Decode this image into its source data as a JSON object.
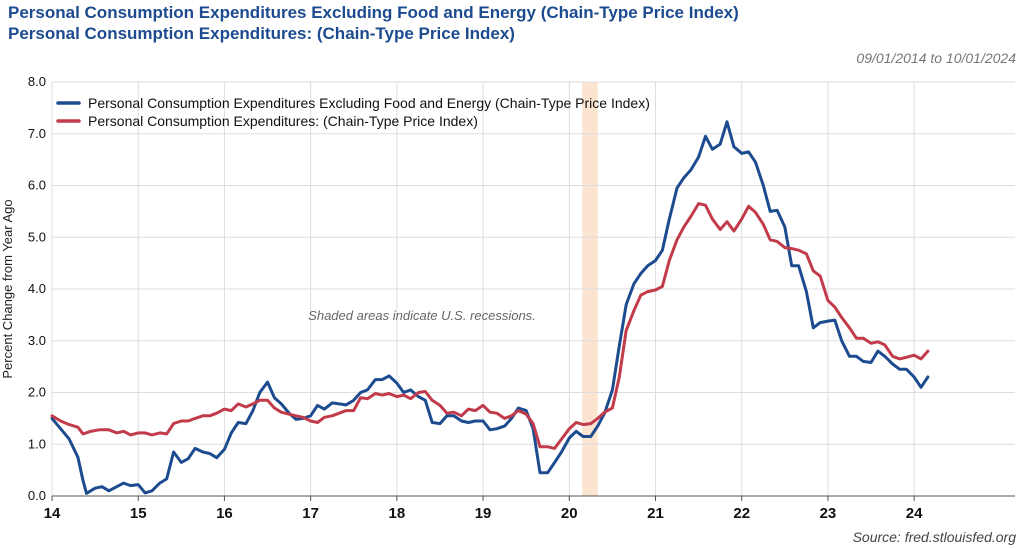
{
  "header": {
    "title_line1": "Personal Consumption Expenditures Excluding Food and Energy (Chain-Type Price Index)",
    "title_line2": "Personal Consumption Expenditures:  (Chain-Type Price Index)",
    "date_range": "09/01/2014 to 10/01/2024"
  },
  "footer": {
    "source": "Source: fred.stlouisfed.org"
  },
  "chart_data": {
    "type": "line",
    "ylabel": "Percent Change from Year Ago",
    "ylim": [
      0,
      8
    ],
    "yticks": [
      "0.0",
      "1.0",
      "2.0",
      "3.0",
      "4.0",
      "5.0",
      "6.0",
      "7.0",
      "8.0"
    ],
    "xlim": [
      2014.0,
      2025.17
    ],
    "xticks": [
      {
        "value": 2014.0,
        "label": "14"
      },
      {
        "value": 2015.0,
        "label": "15"
      },
      {
        "value": 2016.0,
        "label": "16"
      },
      {
        "value": 2017.0,
        "label": "17"
      },
      {
        "value": 2018.0,
        "label": "18"
      },
      {
        "value": 2019.0,
        "label": "19"
      },
      {
        "value": 2020.0,
        "label": "20"
      },
      {
        "value": 2021.0,
        "label": "21"
      },
      {
        "value": 2022.0,
        "label": "22"
      },
      {
        "value": 2023.0,
        "label": "23"
      },
      {
        "value": 2024.0,
        "label": "24"
      }
    ],
    "grid": true,
    "legend_position": "top-left",
    "recession": {
      "start": 2020.15,
      "end": 2020.33,
      "color": "#fbe5d0"
    },
    "annotation": "Shaded areas indicate U.S. recessions.",
    "series": [
      {
        "name": "Personal Consumption Expenditures Excluding Food and Energy (Chain-Type Price Index)",
        "color": "#1d4b8f",
        "points": [
          [
            2014.0,
            1.5
          ],
          [
            2014.1,
            1.3
          ],
          [
            2014.2,
            1.1
          ],
          [
            2014.3,
            0.75
          ],
          [
            2014.36,
            0.3
          ],
          [
            2014.4,
            0.05
          ],
          [
            2014.5,
            0.15
          ],
          [
            2014.58,
            0.18
          ],
          [
            2014.66,
            0.1
          ],
          [
            2014.75,
            0.18
          ],
          [
            2014.83,
            0.25
          ],
          [
            2014.91,
            0.2
          ],
          [
            2015.0,
            0.22
          ],
          [
            2015.08,
            0.06
          ],
          [
            2015.16,
            0.1
          ],
          [
            2015.25,
            0.25
          ],
          [
            2015.33,
            0.33
          ],
          [
            2015.41,
            0.85
          ],
          [
            2015.5,
            0.65
          ],
          [
            2015.58,
            0.72
          ],
          [
            2015.66,
            0.92
          ],
          [
            2015.75,
            0.85
          ],
          [
            2015.83,
            0.82
          ],
          [
            2015.91,
            0.74
          ],
          [
            2016.0,
            0.9
          ],
          [
            2016.08,
            1.22
          ],
          [
            2016.16,
            1.42
          ],
          [
            2016.25,
            1.4
          ],
          [
            2016.33,
            1.65
          ],
          [
            2016.41,
            2.0
          ],
          [
            2016.5,
            2.2
          ],
          [
            2016.58,
            1.9
          ],
          [
            2016.66,
            1.78
          ],
          [
            2016.75,
            1.6
          ],
          [
            2016.83,
            1.48
          ],
          [
            2016.91,
            1.5
          ],
          [
            2017.0,
            1.55
          ],
          [
            2017.08,
            1.75
          ],
          [
            2017.16,
            1.68
          ],
          [
            2017.25,
            1.8
          ],
          [
            2017.33,
            1.78
          ],
          [
            2017.41,
            1.76
          ],
          [
            2017.5,
            1.85
          ],
          [
            2017.58,
            2.0
          ],
          [
            2017.66,
            2.05
          ],
          [
            2017.75,
            2.25
          ],
          [
            2017.83,
            2.25
          ],
          [
            2017.91,
            2.32
          ],
          [
            2018.0,
            2.18
          ],
          [
            2018.08,
            2.0
          ],
          [
            2018.16,
            2.05
          ],
          [
            2018.25,
            1.92
          ],
          [
            2018.33,
            1.85
          ],
          [
            2018.41,
            1.42
          ],
          [
            2018.5,
            1.4
          ],
          [
            2018.58,
            1.55
          ],
          [
            2018.66,
            1.55
          ],
          [
            2018.75,
            1.45
          ],
          [
            2018.83,
            1.42
          ],
          [
            2018.91,
            1.45
          ],
          [
            2019.0,
            1.45
          ],
          [
            2019.08,
            1.28
          ],
          [
            2019.16,
            1.3
          ],
          [
            2019.25,
            1.35
          ],
          [
            2019.33,
            1.5
          ],
          [
            2019.41,
            1.7
          ],
          [
            2019.5,
            1.65
          ],
          [
            2019.58,
            1.3
          ],
          [
            2019.66,
            0.45
          ],
          [
            2019.75,
            0.45
          ],
          [
            2019.83,
            0.65
          ],
          [
            2019.91,
            0.85
          ],
          [
            2020.0,
            1.12
          ],
          [
            2020.08,
            1.25
          ],
          [
            2020.16,
            1.15
          ],
          [
            2020.25,
            1.15
          ],
          [
            2020.33,
            1.35
          ],
          [
            2020.41,
            1.6
          ],
          [
            2020.5,
            2.05
          ],
          [
            2020.58,
            2.9
          ],
          [
            2020.66,
            3.7
          ],
          [
            2020.75,
            4.1
          ],
          [
            2020.83,
            4.3
          ],
          [
            2020.91,
            4.45
          ],
          [
            2021.0,
            4.55
          ],
          [
            2021.08,
            4.75
          ],
          [
            2021.16,
            5.35
          ],
          [
            2021.25,
            5.95
          ],
          [
            2021.33,
            6.15
          ],
          [
            2021.41,
            6.3
          ],
          [
            2021.5,
            6.55
          ],
          [
            2021.58,
            6.95
          ],
          [
            2021.66,
            6.7
          ],
          [
            2021.75,
            6.8
          ],
          [
            2021.83,
            7.23
          ],
          [
            2021.91,
            6.75
          ],
          [
            2022.0,
            6.62
          ],
          [
            2022.08,
            6.65
          ],
          [
            2022.16,
            6.45
          ],
          [
            2022.25,
            6.0
          ],
          [
            2022.33,
            5.5
          ],
          [
            2022.41,
            5.52
          ],
          [
            2022.5,
            5.2
          ],
          [
            2022.58,
            4.45
          ],
          [
            2022.66,
            4.45
          ],
          [
            2022.75,
            3.95
          ],
          [
            2022.83,
            3.25
          ],
          [
            2022.91,
            3.35
          ],
          [
            2023.0,
            3.38
          ],
          [
            2023.08,
            3.4
          ],
          [
            2023.16,
            3.0
          ],
          [
            2023.25,
            2.7
          ],
          [
            2023.33,
            2.7
          ],
          [
            2023.41,
            2.6
          ],
          [
            2023.5,
            2.58
          ],
          [
            2023.58,
            2.8
          ],
          [
            2023.66,
            2.7
          ],
          [
            2023.75,
            2.55
          ],
          [
            2023.83,
            2.45
          ],
          [
            2023.91,
            2.45
          ],
          [
            2024.0,
            2.3
          ],
          [
            2024.08,
            2.1
          ],
          [
            2024.16,
            2.3
          ]
        ]
      },
      {
        "name": "Personal Consumption Expenditures:  (Chain-Type Price Index)",
        "color": "#c23b4b",
        "points": [
          [
            2014.0,
            1.55
          ],
          [
            2014.1,
            1.45
          ],
          [
            2014.2,
            1.38
          ],
          [
            2014.3,
            1.33
          ],
          [
            2014.36,
            1.2
          ],
          [
            2014.45,
            1.25
          ],
          [
            2014.55,
            1.28
          ],
          [
            2014.66,
            1.28
          ],
          [
            2014.75,
            1.22
          ],
          [
            2014.83,
            1.25
          ],
          [
            2014.91,
            1.18
          ],
          [
            2015.0,
            1.22
          ],
          [
            2015.08,
            1.22
          ],
          [
            2015.16,
            1.18
          ],
          [
            2015.25,
            1.22
          ],
          [
            2015.33,
            1.2
          ],
          [
            2015.41,
            1.4
          ],
          [
            2015.5,
            1.45
          ],
          [
            2015.58,
            1.45
          ],
          [
            2015.66,
            1.5
          ],
          [
            2015.75,
            1.55
          ],
          [
            2015.83,
            1.55
          ],
          [
            2015.91,
            1.6
          ],
          [
            2016.0,
            1.68
          ],
          [
            2016.08,
            1.65
          ],
          [
            2016.16,
            1.78
          ],
          [
            2016.25,
            1.72
          ],
          [
            2016.33,
            1.78
          ],
          [
            2016.41,
            1.85
          ],
          [
            2016.5,
            1.85
          ],
          [
            2016.58,
            1.7
          ],
          [
            2016.66,
            1.62
          ],
          [
            2016.75,
            1.58
          ],
          [
            2016.83,
            1.55
          ],
          [
            2016.91,
            1.52
          ],
          [
            2017.0,
            1.45
          ],
          [
            2017.08,
            1.42
          ],
          [
            2017.16,
            1.52
          ],
          [
            2017.25,
            1.55
          ],
          [
            2017.33,
            1.6
          ],
          [
            2017.41,
            1.65
          ],
          [
            2017.5,
            1.65
          ],
          [
            2017.58,
            1.9
          ],
          [
            2017.66,
            1.88
          ],
          [
            2017.75,
            1.98
          ],
          [
            2017.83,
            1.95
          ],
          [
            2017.91,
            1.98
          ],
          [
            2018.0,
            1.92
          ],
          [
            2018.08,
            1.95
          ],
          [
            2018.16,
            1.88
          ],
          [
            2018.25,
            2.0
          ],
          [
            2018.33,
            2.02
          ],
          [
            2018.41,
            1.85
          ],
          [
            2018.5,
            1.75
          ],
          [
            2018.58,
            1.6
          ],
          [
            2018.66,
            1.62
          ],
          [
            2018.75,
            1.55
          ],
          [
            2018.83,
            1.68
          ],
          [
            2018.91,
            1.65
          ],
          [
            2019.0,
            1.75
          ],
          [
            2019.08,
            1.62
          ],
          [
            2019.16,
            1.6
          ],
          [
            2019.25,
            1.5
          ],
          [
            2019.33,
            1.55
          ],
          [
            2019.41,
            1.65
          ],
          [
            2019.5,
            1.58
          ],
          [
            2019.58,
            1.4
          ],
          [
            2019.66,
            0.95
          ],
          [
            2019.75,
            0.95
          ],
          [
            2019.83,
            0.92
          ],
          [
            2019.91,
            1.1
          ],
          [
            2020.0,
            1.3
          ],
          [
            2020.08,
            1.42
          ],
          [
            2020.16,
            1.38
          ],
          [
            2020.25,
            1.4
          ],
          [
            2020.33,
            1.5
          ],
          [
            2020.41,
            1.62
          ],
          [
            2020.5,
            1.7
          ],
          [
            2020.58,
            2.3
          ],
          [
            2020.66,
            3.2
          ],
          [
            2020.75,
            3.58
          ],
          [
            2020.83,
            3.88
          ],
          [
            2020.91,
            3.95
          ],
          [
            2021.0,
            3.98
          ],
          [
            2021.08,
            4.05
          ],
          [
            2021.16,
            4.55
          ],
          [
            2021.25,
            4.95
          ],
          [
            2021.33,
            5.2
          ],
          [
            2021.41,
            5.4
          ],
          [
            2021.5,
            5.65
          ],
          [
            2021.58,
            5.62
          ],
          [
            2021.66,
            5.35
          ],
          [
            2021.75,
            5.15
          ],
          [
            2021.83,
            5.3
          ],
          [
            2021.91,
            5.12
          ],
          [
            2022.0,
            5.35
          ],
          [
            2022.08,
            5.6
          ],
          [
            2022.16,
            5.48
          ],
          [
            2022.25,
            5.25
          ],
          [
            2022.33,
            4.95
          ],
          [
            2022.41,
            4.92
          ],
          [
            2022.5,
            4.8
          ],
          [
            2022.58,
            4.78
          ],
          [
            2022.66,
            4.75
          ],
          [
            2022.75,
            4.68
          ],
          [
            2022.83,
            4.35
          ],
          [
            2022.91,
            4.25
          ],
          [
            2023.0,
            3.78
          ],
          [
            2023.08,
            3.65
          ],
          [
            2023.16,
            3.45
          ],
          [
            2023.25,
            3.25
          ],
          [
            2023.33,
            3.05
          ],
          [
            2023.41,
            3.05
          ],
          [
            2023.5,
            2.95
          ],
          [
            2023.58,
            2.98
          ],
          [
            2023.66,
            2.92
          ],
          [
            2023.75,
            2.7
          ],
          [
            2023.83,
            2.65
          ],
          [
            2023.91,
            2.68
          ],
          [
            2024.0,
            2.72
          ],
          [
            2024.08,
            2.65
          ],
          [
            2024.16,
            2.8
          ]
        ]
      }
    ]
  }
}
